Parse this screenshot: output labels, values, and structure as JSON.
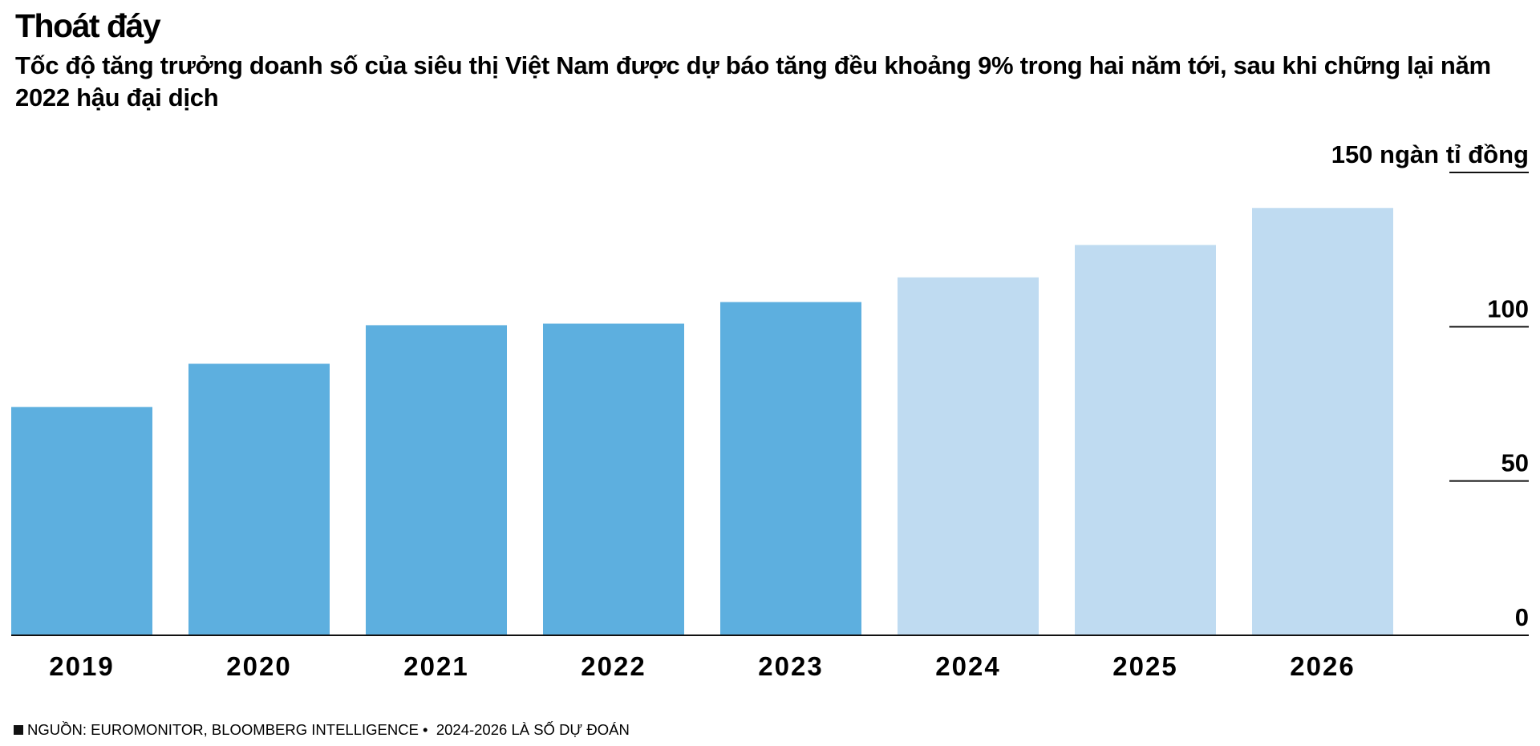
{
  "title": "Thoát đáy",
  "subtitle": "Tốc độ tăng trưởng doanh số của siêu thị Việt Nam được dự báo tăng đều khoảng 9% trong hai năm tới, sau khi chững lại năm 2022 hậu đại dịch",
  "footer": {
    "source": "NGUỒN: EUROMONITOR, BLOOMBERG INTELLIGENCE",
    "note": "2024-2026 LÀ SỐ DỰ ĐOÁN"
  },
  "colors": {
    "actual": "#5dafdf",
    "forecast": "#bfdbf1",
    "axis": "#111111",
    "gridline": "#111111"
  },
  "chart_data": {
    "type": "bar",
    "categories": [
      "2019",
      "2020",
      "2021",
      "2022",
      "2023",
      "2024",
      "2025",
      "2026"
    ],
    "values": [
      74,
      88,
      100.5,
      101,
      108,
      116,
      126.5,
      138.5
    ],
    "forecast": [
      false,
      false,
      false,
      false,
      false,
      true,
      true,
      true
    ],
    "ylim": [
      0,
      150
    ],
    "yticks": [
      0,
      50,
      100,
      150
    ],
    "ytick_labels": [
      "0",
      "50",
      "100",
      "150 ngàn tỉ đồng"
    ],
    "xlabel": "",
    "ylabel": "",
    "grid": false
  }
}
